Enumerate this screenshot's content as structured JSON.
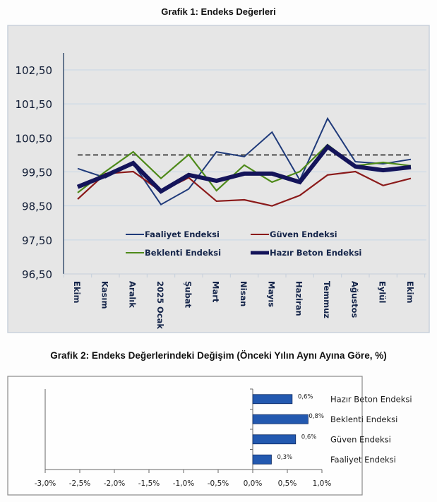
{
  "chart_data": [
    {
      "type": "line",
      "title": "Grafik 1: Endeks Değerleri",
      "xlabel": "",
      "ylabel": "",
      "ylim": [
        96.5,
        102.5
      ],
      "yticks": [
        "102,50",
        "101,50",
        "100,50",
        "99,50",
        "98,50",
        "97,50",
        "96,50"
      ],
      "ytick_values": [
        102.5,
        101.5,
        100.5,
        99.5,
        98.5,
        97.5,
        96.5
      ],
      "grid": true,
      "categories": [
        "Ekim",
        "Kasım",
        "Aralık",
        "2025 Ocak",
        "Şubat",
        "Mart",
        "Nisan",
        "Mayıs",
        "Haziran",
        "Temmuz",
        "Ağustos",
        "Eylül",
        "Ekim"
      ],
      "reference_line": 100,
      "legend_position": "bottom-inside",
      "series": [
        {
          "name": "Faaliyet Endeksi",
          "color": "#1f3a7a",
          "values": [
            99.6,
            99.33,
            99.74,
            98.54,
            99.0,
            100.09,
            99.95,
            100.67,
            99.26,
            101.07,
            99.8,
            99.74,
            99.87
          ]
        },
        {
          "name": "Güven Endeksi",
          "color": "#8b1a1a",
          "values": [
            98.7,
            99.45,
            99.51,
            98.93,
            99.33,
            98.64,
            98.68,
            98.5,
            98.81,
            99.41,
            99.51,
            99.1,
            99.31
          ]
        },
        {
          "name": "Beklenti Endeksi",
          "color": "#4e8a1a",
          "values": [
            98.89,
            99.51,
            100.09,
            99.31,
            100.01,
            98.95,
            99.7,
            99.2,
            99.51,
            100.3,
            99.68,
            99.78,
            99.68
          ]
        },
        {
          "name": "Hazır Beton Endeksi",
          "color": "#14145a",
          "values": [
            99.06,
            99.39,
            99.76,
            98.93,
            99.41,
            99.24,
            99.45,
            99.45,
            99.2,
            100.24,
            99.66,
            99.55,
            99.64
          ]
        }
      ]
    },
    {
      "type": "bar",
      "orientation": "horizontal",
      "title": "Grafik 2: Endeks Değerlerindeki Değişim (Önceki Yılın Aynı Ayına Göre, %)",
      "xlim": [
        -3.0,
        1.0
      ],
      "xticks": [
        "-3,0%",
        "-2,5%",
        "-2,0%",
        "-1,5%",
        "-1,0%",
        "-0,5%",
        "0,0%",
        "0,5%",
        "1,0%"
      ],
      "xtick_values": [
        -3.0,
        -2.5,
        -2.0,
        -1.5,
        -1.0,
        -0.5,
        0.0,
        0.5,
        1.0
      ],
      "grid": false,
      "categories": [
        "Hazır Beton Endeksi",
        "Beklenti Endeksi",
        "Güven Endeksi",
        "Faaliyet Endeksi"
      ],
      "values": [
        0.57,
        0.8,
        0.62,
        0.27
      ],
      "data_labels": [
        "0,6%",
        "0,8%",
        "0,6%",
        "0,3%"
      ],
      "bar_color": "#2359b0"
    }
  ]
}
